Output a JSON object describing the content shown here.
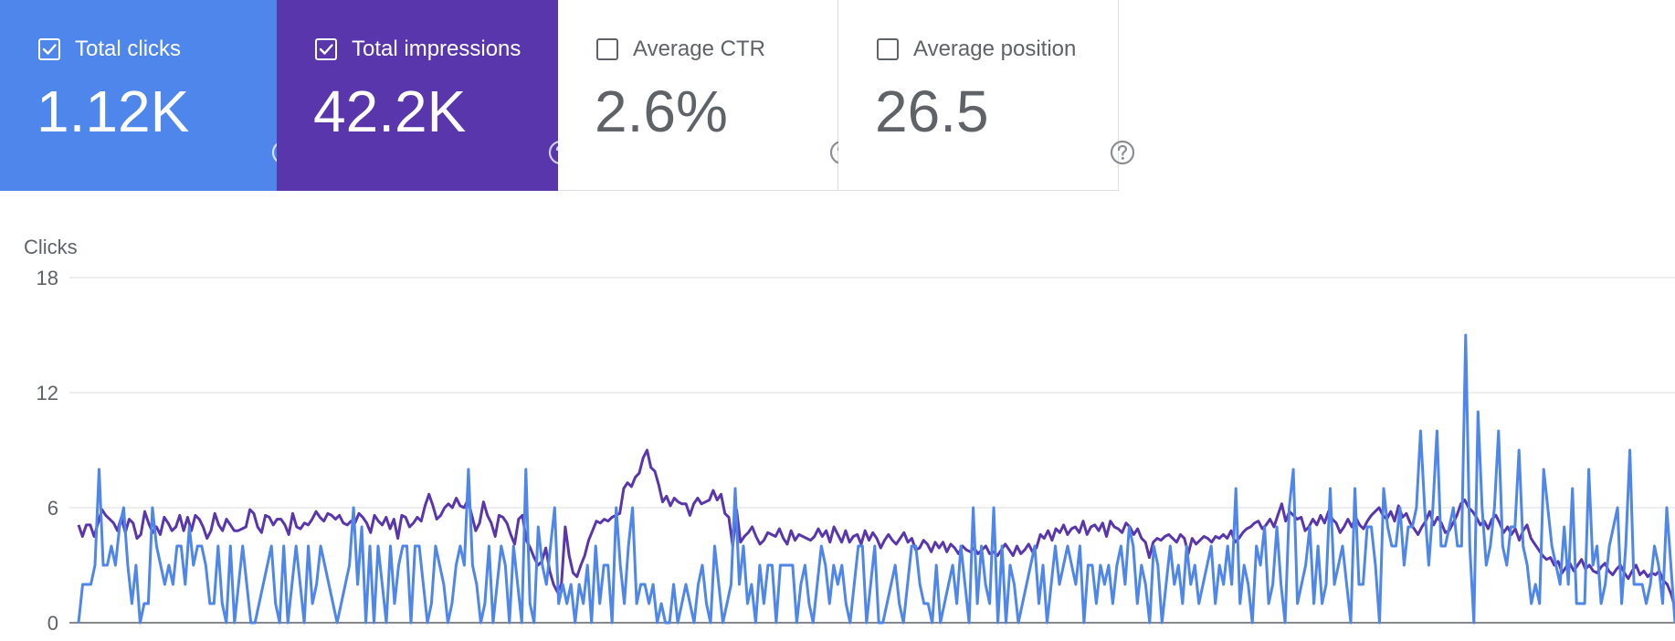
{
  "cards": [
    {
      "label": "Total clicks",
      "value": "1.12K",
      "checked": true,
      "color": "#4e86ec"
    },
    {
      "label": "Total impressions",
      "value": "42.2K",
      "checked": true,
      "color": "#5936ac"
    },
    {
      "label": "Average CTR",
      "value": "2.6%",
      "checked": false,
      "color": "#ffffff"
    },
    {
      "label": "Average position",
      "value": "26.5",
      "checked": false,
      "color": "#ffffff"
    }
  ],
  "icons": {
    "checkbox": "checkbox-icon",
    "help": "help-circle-icon"
  },
  "chart_data": {
    "type": "line",
    "ylabel": "Clicks",
    "ylim": [
      0,
      18
    ],
    "yticks": [
      0,
      6,
      12,
      18
    ],
    "grid": true,
    "series": [
      {
        "name": "Total clicks",
        "color": "#4e86ec",
        "values": [
          0,
          2,
          2,
          2,
          3,
          8,
          3,
          3,
          4,
          3,
          5,
          6,
          3,
          1,
          3,
          0,
          1,
          1,
          6,
          4,
          3,
          2,
          3,
          2,
          4,
          4,
          2,
          5,
          3,
          4,
          4,
          3,
          1,
          1,
          4,
          1,
          0,
          4,
          0,
          2,
          4,
          2,
          0,
          0,
          1,
          2,
          3,
          4,
          1,
          0,
          4,
          0,
          2,
          4,
          2,
          0,
          4,
          1,
          2,
          4,
          3,
          2,
          1,
          0,
          1,
          2,
          3,
          6,
          2,
          5,
          0,
          4,
          0,
          4,
          2,
          0,
          4,
          1,
          3,
          4,
          4,
          0,
          4,
          4,
          2,
          0,
          1,
          4,
          3,
          2,
          0,
          1,
          3,
          4,
          3,
          8,
          3,
          2,
          0,
          1,
          4,
          0,
          2,
          4,
          3,
          0,
          4,
          2,
          0,
          8,
          1,
          0,
          5,
          3,
          2,
          4,
          6,
          1,
          2,
          1,
          2,
          0,
          2,
          1,
          3,
          0,
          4,
          1,
          3,
          3,
          0,
          6,
          3,
          1,
          4,
          6,
          1,
          2,
          2,
          1,
          2,
          0,
          1,
          0,
          0,
          2,
          0,
          1,
          2,
          1,
          0,
          2,
          3,
          1,
          0,
          4,
          2,
          0,
          1,
          2,
          7,
          2,
          4,
          1,
          2,
          0,
          3,
          1,
          3,
          3,
          0,
          3,
          3,
          3,
          3,
          0,
          2,
          3,
          1,
          0,
          2,
          4,
          3,
          1,
          3,
          2,
          3,
          1,
          0,
          2,
          4,
          4,
          0,
          2,
          4,
          0,
          0,
          1,
          2,
          3,
          1,
          0,
          2,
          4,
          4,
          2,
          1,
          1,
          0,
          3,
          0,
          1,
          2,
          3,
          1,
          4,
          2,
          0,
          6,
          1,
          4,
          2,
          1,
          6,
          0,
          4,
          0,
          3,
          2,
          0,
          1,
          2,
          3,
          4,
          1,
          3,
          0,
          2,
          4,
          2,
          3,
          4,
          3,
          2,
          4,
          0,
          3,
          3,
          1,
          3,
          2,
          3,
          1,
          3,
          4,
          2,
          5,
          4,
          1,
          3,
          2,
          0,
          4,
          3,
          0,
          2,
          4,
          2,
          3,
          1,
          4,
          2,
          3,
          1,
          2,
          3,
          4,
          1,
          3,
          2,
          4,
          2,
          7,
          1,
          3,
          2,
          0,
          4,
          3,
          5,
          1,
          2,
          5,
          2,
          0,
          6,
          8,
          1,
          2,
          3,
          5,
          1,
          4,
          1,
          2,
          7,
          2,
          3,
          4,
          2,
          0,
          7,
          2,
          2,
          5,
          5,
          3,
          0,
          7,
          5,
          4,
          4,
          6,
          3,
          5,
          5,
          6,
          10,
          6,
          3,
          6,
          10,
          4,
          4,
          5,
          6,
          4,
          4,
          15,
          4,
          0,
          11,
          6,
          3,
          4,
          6,
          10,
          4,
          3,
          5,
          5,
          9,
          4,
          3,
          1,
          2,
          1,
          8,
          6,
          4,
          3,
          2,
          5,
          2,
          7,
          1,
          1,
          1,
          8,
          3,
          4,
          1,
          2,
          4,
          5,
          6,
          1,
          4,
          9,
          2,
          2,
          2,
          1,
          2,
          4,
          3,
          1,
          6,
          3,
          0
        ]
      },
      {
        "name": "Total impressions",
        "color": "#5936ac",
        "values": [
          5.1,
          4.5,
          5.1,
          5.1,
          4.5,
          5.2,
          5.9,
          5.6,
          5.4,
          5.2,
          4.8,
          5.5,
          4.7,
          5.4,
          5.2,
          4.4,
          4.6,
          5.8,
          5.2,
          4.7,
          5.0,
          4.6,
          5.5,
          5.2,
          4.8,
          5.0,
          5.6,
          4.8,
          5.5,
          4.8,
          5.6,
          5.4,
          5.0,
          4.4,
          4.8,
          5.7,
          5.1,
          4.8,
          5.4,
          5.1,
          4.8,
          4.8,
          4.9,
          5.0,
          5.9,
          5.7,
          5.0,
          4.7,
          5.6,
          5.5,
          5.1,
          5.4,
          5.4,
          5.1,
          4.6,
          5.7,
          5.0,
          4.9,
          5.2,
          5.1,
          5.4,
          5.8,
          5.5,
          5.3,
          5.7,
          5.6,
          5.4,
          5.6,
          5.2,
          5.1,
          5.3,
          5.2,
          5.7,
          5.5,
          5.2,
          4.7,
          5.6,
          5.3,
          5.1,
          5.5,
          4.9,
          5.4,
          4.4,
          5.6,
          5.5,
          5.0,
          5.2,
          5.5,
          5.3,
          6.1,
          6.7,
          6.1,
          5.4,
          5.6,
          6.0,
          6.2,
          6.0,
          6.5,
          6.1,
          6.0,
          6.4,
          5.6,
          4.8,
          5.2,
          6.3,
          5.6,
          5.2,
          4.5,
          5.6,
          5.5,
          5.2,
          4.6,
          4.1,
          5.4,
          5.6,
          4.3,
          3.9,
          3.4,
          3.0,
          3.2,
          3.9,
          2.7,
          2.0,
          1.6,
          2.0,
          5.0,
          3.5,
          2.6,
          2.4,
          3.0,
          3.5,
          4.3,
          4.8,
          5.3,
          5.2,
          5.4,
          5.3,
          5.5,
          5.6,
          5.7,
          7.0,
          7.3,
          7.1,
          7.6,
          7.8,
          8.6,
          9.0,
          8.1,
          7.9,
          7.2,
          6.3,
          6.6,
          6.1,
          6.5,
          6.3,
          6.2,
          6.2,
          5.6,
          6.2,
          6.5,
          6.2,
          6.3,
          6.4,
          6.9,
          6.4,
          6.7,
          5.7,
          5.5,
          4.0,
          5.9,
          4.2,
          4.5,
          4.7,
          5.0,
          4.5,
          4.1,
          4.3,
          4.7,
          4.6,
          4.5,
          4.9,
          4.4,
          4.1,
          4.8,
          4.3,
          4.6,
          4.5,
          4.4,
          4.3,
          4.5,
          4.9,
          4.5,
          4.8,
          4.2,
          5.0,
          4.6,
          4.2,
          4.8,
          4.2,
          4.5,
          4.6,
          4.1,
          4.8,
          4.3,
          4.7,
          4.4,
          3.9,
          4.3,
          4.6,
          4.3,
          4.1,
          4.4,
          4.7,
          4.2,
          4.4,
          3.8,
          3.9,
          4.3,
          4.1,
          3.7,
          4.2,
          3.9,
          4.2,
          3.7,
          4.1,
          3.9,
          3.6,
          4.0,
          3.8,
          3.7,
          3.9,
          3.6,
          3.8,
          4.0,
          3.6,
          3.7,
          3.5,
          3.8,
          4.1,
          3.8,
          3.5,
          4.0,
          3.6,
          3.8,
          4.1,
          3.7,
          3.9,
          4.6,
          4.4,
          4.8,
          4.3,
          4.9,
          4.7,
          5.1,
          4.6,
          4.9,
          5.0,
          4.7,
          5.3,
          4.6,
          5.0,
          5.1,
          4.8,
          5.2,
          4.5,
          5.3,
          5.0,
          4.9,
          4.7,
          5.2,
          5.0,
          4.6,
          4.9,
          4.4,
          4.2,
          3.4,
          4.2,
          4.4,
          4.3,
          4.5,
          4.6,
          4.4,
          4.2,
          4.6,
          4.4,
          3.6,
          4.4,
          4.1,
          4.3,
          4.5,
          4.4,
          4.2,
          4.5,
          4.4,
          4.6,
          4.4,
          4.8,
          4.2,
          4.4,
          4.7,
          4.9,
          5.0,
          5.2,
          5.3,
          4.9,
          5.1,
          5.4,
          5.0,
          5.6,
          6.2,
          5.3,
          5.8,
          5.6,
          5.4,
          5.5,
          4.8,
          5.0,
          5.4,
          5.1,
          5.6,
          5.2,
          5.8,
          5.4,
          5.2,
          4.7,
          5.0,
          5.4,
          5.0,
          5.5,
          5.1,
          4.9,
          5.3,
          5.6,
          5.8,
          6.0,
          5.6,
          5.4,
          5.8,
          5.3,
          6.1,
          5.5,
          5.7,
          5.2,
          4.9,
          4.6,
          5.0,
          5.3,
          5.8,
          5.1,
          5.5,
          5.2,
          4.7,
          4.8,
          5.2,
          5.6,
          6.2,
          6.4,
          6.0,
          5.8,
          5.5,
          5.1,
          5.3,
          4.9,
          5.4,
          5.6,
          5.2,
          4.7,
          5.0,
          4.6,
          4.9,
          4.3,
          4.8,
          5.1,
          4.4,
          4.1,
          3.8,
          3.5,
          3.3,
          3.4,
          3.0,
          3.2,
          2.6,
          2.9,
          3.1,
          2.7,
          3.0,
          3.3,
          2.8,
          3.0,
          2.7,
          2.6,
          2.9,
          3.1,
          2.7,
          2.5,
          2.8,
          3.0,
          2.6,
          2.3,
          2.7,
          3.0,
          2.5,
          2.7,
          2.4,
          2.6,
          2.5,
          2.7,
          2.2,
          2.0,
          1.5,
          0.8
        ]
      }
    ]
  }
}
